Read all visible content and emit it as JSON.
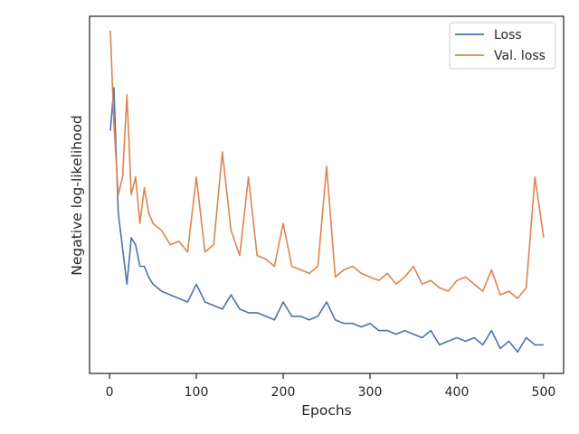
{
  "chart_data": {
    "type": "line",
    "title": "",
    "xlabel": "Epochs",
    "ylabel": "Negative log-likelihood",
    "xlim": [
      -23,
      523
    ],
    "ylim": [
      0,
      1
    ],
    "y_tick_labels_shown": false,
    "x_ticks": [
      0,
      100,
      200,
      300,
      400,
      500
    ],
    "x_tick_labels": [
      "0",
      "100",
      "200",
      "300",
      "400",
      "500"
    ],
    "grid": false,
    "legend_position": "top-right",
    "series": [
      {
        "name": "Loss",
        "color": "#4c72b0",
        "x": [
          1,
          5,
          10,
          15,
          20,
          25,
          30,
          35,
          40,
          45,
          50,
          60,
          70,
          80,
          90,
          100,
          110,
          120,
          130,
          140,
          150,
          160,
          170,
          180,
          190,
          200,
          210,
          220,
          230,
          240,
          250,
          260,
          270,
          280,
          290,
          300,
          310,
          320,
          330,
          340,
          350,
          360,
          370,
          380,
          390,
          400,
          410,
          420,
          430,
          440,
          450,
          460,
          470,
          480,
          490,
          500
        ],
        "y": [
          0.68,
          0.8,
          0.45,
          0.35,
          0.25,
          0.38,
          0.36,
          0.3,
          0.3,
          0.27,
          0.25,
          0.23,
          0.22,
          0.21,
          0.2,
          0.25,
          0.2,
          0.19,
          0.18,
          0.22,
          0.18,
          0.17,
          0.17,
          0.16,
          0.15,
          0.2,
          0.16,
          0.16,
          0.15,
          0.16,
          0.2,
          0.15,
          0.14,
          0.14,
          0.13,
          0.14,
          0.12,
          0.12,
          0.11,
          0.12,
          0.11,
          0.1,
          0.12,
          0.08,
          0.09,
          0.1,
          0.09,
          0.1,
          0.08,
          0.12,
          0.07,
          0.09,
          0.06,
          0.1,
          0.08,
          0.08
        ]
      },
      {
        "name": "Val. loss",
        "color": "#dd8452",
        "x": [
          1,
          5,
          10,
          15,
          20,
          25,
          30,
          35,
          40,
          45,
          50,
          60,
          70,
          80,
          90,
          100,
          110,
          120,
          130,
          140,
          150,
          160,
          170,
          180,
          190,
          200,
          210,
          220,
          230,
          240,
          250,
          260,
          270,
          280,
          290,
          300,
          310,
          320,
          330,
          340,
          350,
          360,
          370,
          380,
          390,
          400,
          410,
          420,
          430,
          440,
          450,
          460,
          470,
          480,
          490,
          500
        ],
        "y": [
          0.96,
          0.7,
          0.5,
          0.55,
          0.78,
          0.5,
          0.55,
          0.42,
          0.52,
          0.45,
          0.42,
          0.4,
          0.36,
          0.37,
          0.34,
          0.55,
          0.34,
          0.36,
          0.62,
          0.4,
          0.33,
          0.55,
          0.33,
          0.32,
          0.3,
          0.42,
          0.3,
          0.29,
          0.28,
          0.3,
          0.58,
          0.27,
          0.29,
          0.3,
          0.28,
          0.27,
          0.26,
          0.28,
          0.25,
          0.27,
          0.3,
          0.25,
          0.26,
          0.24,
          0.23,
          0.26,
          0.27,
          0.25,
          0.23,
          0.29,
          0.22,
          0.23,
          0.21,
          0.24,
          0.55,
          0.38
        ]
      }
    ]
  }
}
